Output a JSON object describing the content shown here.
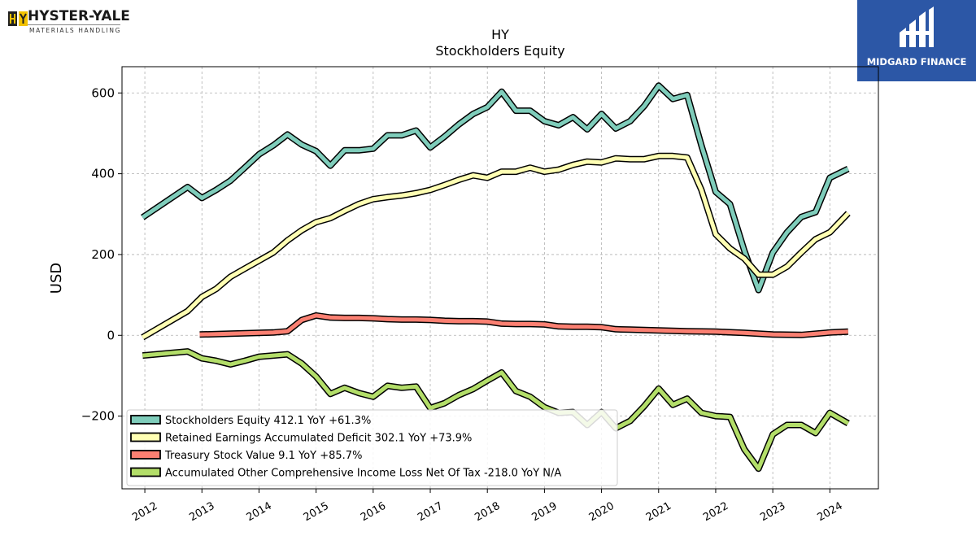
{
  "branding": {
    "company_name": "HYSTER-YALE",
    "company_subtitle": "MATERIALS HANDLING",
    "badge_text": "MIDGARD FINANCE",
    "badge_color": "#2c57a6"
  },
  "chart_data": {
    "type": "line",
    "title": "HY",
    "subtitle": "Stockholders  Equity",
    "ylabel": "USD",
    "xlabel": "",
    "ylim": [
      -380,
      665
    ],
    "xlim": [
      2011.6,
      2024.85
    ],
    "yticks": [
      -200,
      0,
      200,
      400,
      600
    ],
    "ytick_labels": [
      "−200",
      "0",
      "200",
      "400",
      "600"
    ],
    "xticks": [
      2012,
      2013,
      2014,
      2015,
      2016,
      2017,
      2018,
      2019,
      2020,
      2021,
      2022,
      2023,
      2024
    ],
    "xtick_labels": [
      "2012",
      "2013",
      "2014",
      "2015",
      "2016",
      "2017",
      "2018",
      "2019",
      "2020",
      "2021",
      "2022",
      "2023",
      "2024"
    ],
    "grid": true,
    "legend_position": "lower-left",
    "series": [
      {
        "name": "Stockholders Equity",
        "legend_label": "Stockholders Equity  412.1 YoY +61.3%",
        "color": "#7fcdbb",
        "x": [
          2011.96,
          2012.75,
          2013.0,
          2013.25,
          2013.5,
          2013.75,
          2014.0,
          2014.25,
          2014.5,
          2014.75,
          2015.0,
          2015.25,
          2015.5,
          2015.75,
          2016.0,
          2016.25,
          2016.5,
          2016.75,
          2017.0,
          2017.25,
          2017.5,
          2017.75,
          2018.0,
          2018.25,
          2018.5,
          2018.75,
          2019.0,
          2019.25,
          2019.5,
          2019.75,
          2020.0,
          2020.25,
          2020.5,
          2020.75,
          2021.0,
          2021.25,
          2021.5,
          2021.75,
          2022.0,
          2022.25,
          2022.5,
          2022.75,
          2023.0,
          2023.25,
          2023.5,
          2023.75,
          2024.0,
          2024.32
        ],
        "y": [
          292,
          367,
          340,
          360,
          383,
          415,
          448,
          470,
          497,
          472,
          456,
          420,
          458,
          458,
          462,
          495,
          495,
          507,
          465,
          492,
          522,
          548,
          565,
          603,
          556,
          556,
          530,
          520,
          540,
          510,
          548,
          512,
          530,
          568,
          618,
          585,
          595,
          470,
          355,
          325,
          210,
          112,
          205,
          255,
          293,
          305,
          390,
          412.1
        ]
      },
      {
        "name": "Retained Earnings Accumulated Deficit",
        "legend_label": "Retained Earnings Accumulated Deficit  302.1 YoY +73.9%",
        "color": "#ffffb3",
        "x": [
          2011.96,
          2012.75,
          2013.0,
          2013.25,
          2013.5,
          2013.75,
          2014.0,
          2014.25,
          2014.5,
          2014.75,
          2015.0,
          2015.25,
          2015.5,
          2015.75,
          2016.0,
          2016.25,
          2016.5,
          2016.75,
          2017.0,
          2017.25,
          2017.5,
          2017.75,
          2018.0,
          2018.25,
          2018.5,
          2018.75,
          2019.0,
          2019.25,
          2019.5,
          2019.75,
          2020.0,
          2020.25,
          2020.5,
          2020.75,
          2021.0,
          2021.25,
          2021.5,
          2021.75,
          2022.0,
          2022.25,
          2022.5,
          2022.75,
          2023.0,
          2023.25,
          2023.5,
          2023.75,
          2024.0,
          2024.32
        ],
        "y": [
          -5,
          60,
          95,
          115,
          145,
          165,
          185,
          205,
          235,
          260,
          280,
          290,
          308,
          325,
          337,
          342,
          346,
          352,
          360,
          372,
          385,
          396,
          390,
          405,
          405,
          415,
          405,
          410,
          422,
          430,
          428,
          438,
          436,
          436,
          444,
          444,
          440,
          360,
          250,
          215,
          190,
          150,
          150,
          170,
          205,
          238,
          255,
          302.1
        ]
      },
      {
        "name": "Treasury Stock Value",
        "legend_label": "Treasury Stock Value  9.1 YoY +85.7%",
        "color": "#fb8072",
        "x": [
          2012.96,
          2013.5,
          2014.0,
          2014.25,
          2014.5,
          2014.75,
          2015.0,
          2015.25,
          2015.5,
          2015.75,
          2016.0,
          2016.25,
          2016.5,
          2016.75,
          2017.0,
          2017.25,
          2017.5,
          2017.75,
          2018.0,
          2018.25,
          2018.5,
          2018.75,
          2019.0,
          2019.25,
          2019.5,
          2019.75,
          2020.0,
          2020.25,
          2020.5,
          2020.75,
          2021.0,
          2021.5,
          2022.0,
          2022.5,
          2023.0,
          2023.5,
          2024.0,
          2024.32
        ],
        "y": [
          2,
          4,
          6,
          7,
          10,
          38,
          49,
          44,
          43,
          43,
          42,
          40,
          39,
          39,
          38,
          36,
          35,
          35,
          34,
          29,
          28,
          28,
          27,
          22,
          21,
          21,
          20,
          15,
          14,
          13,
          12,
          10,
          9,
          6,
          2,
          1,
          7,
          9.1
        ]
      },
      {
        "name": "Accumulated Other Comprehensive Income Loss Net Of Tax",
        "legend_label": "Accumulated Other Comprehensive Income Loss Net Of Tax  -218.0 YoY N/A",
        "color": "#b3de69",
        "x": [
          2011.96,
          2012.75,
          2013.0,
          2013.25,
          2013.5,
          2013.75,
          2014.0,
          2014.25,
          2014.5,
          2014.75,
          2015.0,
          2015.25,
          2015.5,
          2015.75,
          2016.0,
          2016.25,
          2016.5,
          2016.75,
          2017.0,
          2017.25,
          2017.5,
          2017.75,
          2018.0,
          2018.25,
          2018.5,
          2018.75,
          2019.0,
          2019.25,
          2019.5,
          2019.75,
          2020.0,
          2020.25,
          2020.5,
          2020.75,
          2021.0,
          2021.25,
          2021.5,
          2021.75,
          2022.0,
          2022.25,
          2022.5,
          2022.75,
          2023.0,
          2023.25,
          2023.5,
          2023.75,
          2024.0,
          2024.32
        ],
        "y": [
          -50,
          -40,
          -57,
          -63,
          -72,
          -63,
          -53,
          -50,
          -47,
          -70,
          -102,
          -145,
          -130,
          -143,
          -152,
          -125,
          -130,
          -127,
          -180,
          -168,
          -148,
          -133,
          -112,
          -92,
          -138,
          -152,
          -178,
          -192,
          -190,
          -222,
          -190,
          -230,
          -212,
          -175,
          -132,
          -172,
          -157,
          -192,
          -200,
          -202,
          -282,
          -330,
          -245,
          -222,
          -222,
          -242,
          -192,
          -218.0
        ]
      }
    ]
  }
}
